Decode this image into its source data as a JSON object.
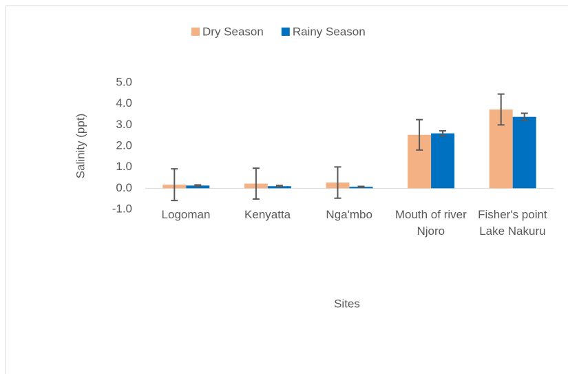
{
  "chart_data": {
    "type": "bar",
    "categories": [
      "Logoman",
      "Kenyatta",
      "Nga'mbo",
      "Mouth of river Njoro",
      "Fisher's point Lake Nakuru"
    ],
    "series": [
      {
        "name": "Dry Season",
        "color": "#f4b183",
        "values": [
          0.17,
          0.22,
          0.27,
          2.53,
          3.73
        ],
        "errors": [
          0.75,
          0.73,
          0.74,
          0.72,
          0.73
        ]
      },
      {
        "name": "Rainy Season",
        "color": "#0070c0",
        "values": [
          0.13,
          0.1,
          0.07,
          2.6,
          3.38
        ],
        "errors": [
          0.03,
          0.03,
          0.02,
          0.12,
          0.17
        ]
      }
    ],
    "ylabel": "Salinity (ppt)",
    "xlabel": "Sites",
    "ylim": [
      -1,
      5
    ],
    "yticks": [
      {
        "value": -1,
        "label": "-1.0"
      },
      {
        "value": 0,
        "label": "0.0"
      },
      {
        "value": 1,
        "label": "1.0"
      },
      {
        "value": 2,
        "label": "2.0"
      },
      {
        "value": 3,
        "label": "3.0"
      },
      {
        "value": 4,
        "label": "4.0"
      },
      {
        "value": 5,
        "label": "5.0"
      }
    ],
    "legend": "top",
    "grid": false,
    "error_color": "#595959"
  }
}
